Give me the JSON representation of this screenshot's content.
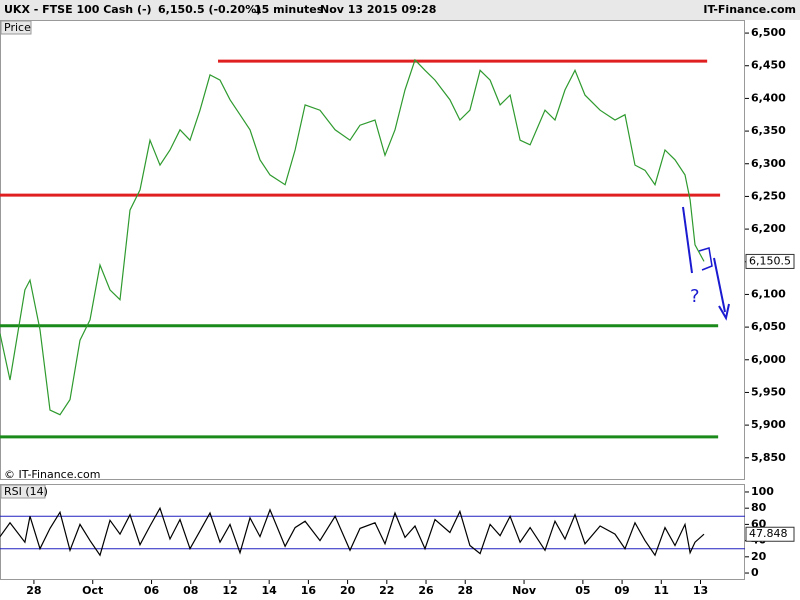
{
  "header": {
    "symbol": "UKX - FTSE 100 Cash (-)",
    "quote": "6,150.5 (-0.20%)",
    "interval": "15 minutes",
    "timestamp": "Nov 13 2015 09:28",
    "brand": "IT-Finance.com"
  },
  "chart_data": [
    {
      "type": "line",
      "panel_label": "Price",
      "footer": "© IT-Finance.com",
      "annotation": "?",
      "xlim": [
        -1.73,
        36.27
      ],
      "ylim": [
        5816,
        6520
      ],
      "color": "#2e9a2e",
      "yticks": [
        {
          "value": 6500,
          "label": "6,500"
        },
        {
          "value": 6450,
          "label": "6,450"
        },
        {
          "value": 6400,
          "label": "6,400"
        },
        {
          "value": 6350,
          "label": "6,350"
        },
        {
          "value": 6300,
          "label": "6,300"
        },
        {
          "value": 6250,
          "label": "6,250"
        },
        {
          "value": 6200,
          "label": "6,200"
        },
        {
          "value": 6150,
          "label": "6,150"
        },
        {
          "value": 6100,
          "label": "6,100"
        },
        {
          "value": 6050,
          "label": "6,050"
        },
        {
          "value": 6000,
          "label": "6,000"
        },
        {
          "value": 5950,
          "label": "5,950"
        },
        {
          "value": 5900,
          "label": "5,900"
        },
        {
          "value": 5850,
          "label": "5,850"
        }
      ],
      "x": [
        -1.73,
        -1.22,
        -0.46,
        -0.2,
        0.31,
        0.82,
        1.33,
        1.84,
        2.35,
        2.86,
        3.37,
        3.88,
        4.39,
        4.9,
        5.41,
        5.92,
        6.43,
        6.94,
        7.45,
        7.96,
        8.47,
        8.98,
        9.49,
        10,
        10.51,
        11.02,
        11.53,
        12.04,
        12.81,
        13.32,
        13.83,
        14.59,
        15.36,
        16.12,
        16.63,
        17.4,
        17.91,
        18.42,
        18.93,
        19.44,
        19.95,
        20.46,
        21.22,
        21.73,
        22.24,
        22.76,
        23.27,
        23.78,
        24.29,
        24.8,
        25.31,
        26.07,
        26.58,
        27.09,
        27.6,
        28.11,
        28.88,
        29.64,
        30.15,
        30.66,
        31.17,
        31.68,
        32.19,
        32.7,
        33.21,
        33.47,
        33.72,
        34.18
      ],
      "values": [
        6040,
        5969,
        6107,
        6122,
        6046,
        5923,
        5916,
        5939,
        6030,
        6061,
        6145,
        6107,
        6092,
        6229,
        6260,
        6336,
        6298,
        6321,
        6352,
        6336,
        6382,
        6436,
        6428,
        6398,
        6375,
        6352,
        6306,
        6283,
        6268,
        6321,
        6390,
        6382,
        6352,
        6336,
        6359,
        6367,
        6313,
        6352,
        6413,
        6459,
        6443,
        6428,
        6398,
        6367,
        6382,
        6443,
        6428,
        6390,
        6405,
        6336,
        6329,
        6382,
        6367,
        6413,
        6443,
        6405,
        6382,
        6367,
        6375,
        6298,
        6290,
        6268,
        6321,
        6306,
        6283,
        6245,
        6176,
        6150.5
      ],
      "current": {
        "value": 6150.5,
        "label": "6,150.5"
      },
      "levels": [
        {
          "value": 6457,
          "color": "#e02020",
          "x": [
            9.39,
            34.34
          ]
        },
        {
          "value": 6252,
          "color": "#e02020",
          "x": [
            -1.73,
            35.0
          ]
        },
        {
          "value": 6052,
          "color": "#1a8a1a",
          "x": [
            -1.73,
            34.9
          ]
        },
        {
          "value": 5882,
          "color": "#1a8a1a",
          "x": [
            -1.73,
            34.9
          ]
        }
      ]
    },
    {
      "type": "line",
      "panel_label": "RSI (14)",
      "xlim": [
        -1.73,
        36.27
      ],
      "ylim": [
        -8.6,
        108.6
      ],
      "color": "#000000",
      "yticks": [
        100,
        80,
        60,
        40,
        20,
        0
      ],
      "xticks": [
        {
          "value": 0,
          "label": "28"
        },
        {
          "value": 3,
          "label": "Oct"
        },
        {
          "value": 6,
          "label": "06"
        },
        {
          "value": 8,
          "label": "08"
        },
        {
          "value": 10,
          "label": "12"
        },
        {
          "value": 12,
          "label": "14"
        },
        {
          "value": 14,
          "label": "16"
        },
        {
          "value": 16,
          "label": "20"
        },
        {
          "value": 18,
          "label": "22"
        },
        {
          "value": 20,
          "label": "26"
        },
        {
          "value": 22,
          "label": "28"
        },
        {
          "value": 25,
          "label": "Nov"
        },
        {
          "value": 28,
          "label": "05"
        },
        {
          "value": 30,
          "label": "09"
        },
        {
          "value": 32,
          "label": "11"
        },
        {
          "value": 34,
          "label": "13"
        }
      ],
      "x": [
        -1.73,
        -1.22,
        -0.46,
        -0.2,
        0.31,
        0.82,
        1.33,
        1.84,
        2.35,
        2.86,
        3.37,
        3.88,
        4.39,
        4.9,
        5.41,
        5.92,
        6.43,
        6.94,
        7.45,
        7.96,
        8.47,
        8.98,
        9.49,
        10,
        10.51,
        11.02,
        11.53,
        12.04,
        12.81,
        13.32,
        13.83,
        14.59,
        15.36,
        16.12,
        16.63,
        17.4,
        17.91,
        18.42,
        18.93,
        19.44,
        19.95,
        20.46,
        21.22,
        21.73,
        22.24,
        22.76,
        23.27,
        23.78,
        24.29,
        24.8,
        25.31,
        26.07,
        26.58,
        27.09,
        27.6,
        28.11,
        28.88,
        29.64,
        30.15,
        30.66,
        31.17,
        31.68,
        32.19,
        32.7,
        33.21,
        33.47,
        33.72,
        34.18
      ],
      "values": [
        45,
        62,
        38,
        70,
        30,
        55,
        75,
        28,
        60,
        40,
        22,
        65,
        48,
        72,
        35,
        58,
        80,
        42,
        66,
        30,
        52,
        74,
        38,
        60,
        25,
        68,
        45,
        78,
        33,
        56,
        64,
        40,
        70,
        28,
        55,
        62,
        36,
        74,
        44,
        58,
        30,
        66,
        50,
        76,
        34,
        24,
        60,
        46,
        70,
        38,
        56,
        28,
        64,
        42,
        72,
        36,
        58,
        48,
        30,
        62,
        40,
        22,
        56,
        34,
        60,
        25,
        38,
        47.848
      ],
      "current": 47.848,
      "levels": [
        {
          "value": 70,
          "color": "#2020c0"
        },
        {
          "value": 30,
          "color": "#2020c0"
        }
      ]
    }
  ]
}
